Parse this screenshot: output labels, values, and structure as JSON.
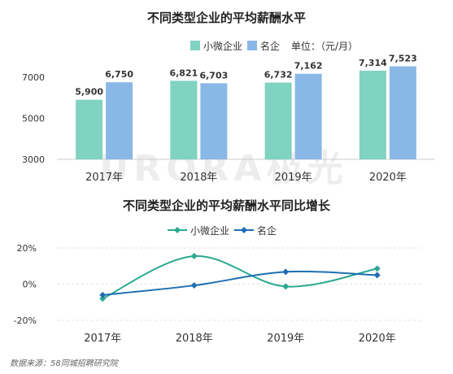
{
  "chart_data": [
    {
      "type": "bar",
      "title": "不同类型企业的平均薪酬水平",
      "unit_note": "单位：（元/月）",
      "categories": [
        "2017年",
        "2018年",
        "2019年",
        "2020年"
      ],
      "series": [
        {
          "name": "小微企业",
          "values": [
            5900,
            6821,
            6732,
            7314
          ],
          "labels": [
            "5,900",
            "6,821",
            "6,732",
            "7,314"
          ],
          "color": "#7fd3c0"
        },
        {
          "name": "名企",
          "values": [
            6750,
            6703,
            7162,
            7523
          ],
          "labels": [
            "6,750",
            "6,703",
            "7,162",
            "7,523"
          ],
          "color": "#8ab8e6"
        }
      ],
      "yticks": [
        "3000",
        "5000",
        "7000"
      ],
      "ylim": [
        3000,
        8100
      ],
      "legend": "top"
    },
    {
      "type": "line",
      "title": "不同类型企业的平均薪酬水平同比增长",
      "categories": [
        "2017年",
        "2018年",
        "2019年",
        "2020年"
      ],
      "series": [
        {
          "name": "小微企业",
          "values": [
            -8,
            15.5,
            -1.3,
            8.6
          ],
          "color": "#2aa891"
        },
        {
          "name": "名企",
          "values": [
            -6,
            -0.7,
            6.8,
            5.0
          ],
          "color": "#1f6fb2"
        }
      ],
      "yticks": [
        "20%",
        "0%",
        "-20%"
      ],
      "ylim": [
        -20,
        20
      ],
      "legend": "top"
    }
  ],
  "watermark": "URORA极光",
  "source": "数据来源：58同城招聘研究院"
}
